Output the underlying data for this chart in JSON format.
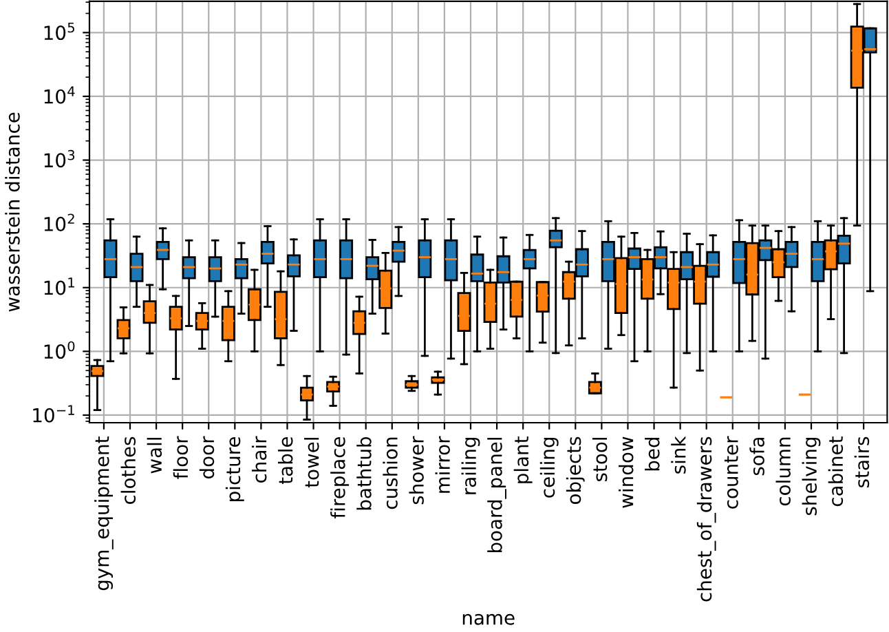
{
  "chart_data": {
    "type": "box",
    "xlabel": "name",
    "ylabel": "wasserstein distance",
    "categories": [
      "gym_equipment",
      "clothes",
      "wall",
      "floor",
      "door",
      "picture",
      "chair",
      "table",
      "towel",
      "fireplace",
      "bathtub",
      "cushion",
      "shower",
      "mirror",
      "railing",
      "board_panel",
      "plant",
      "ceiling",
      "objects",
      "stool",
      "window",
      "bed",
      "sink",
      "chest_of_drawers",
      "counter",
      "sofa",
      "column",
      "shelving",
      "cabinet",
      "stairs"
    ],
    "log": true,
    "grid": true,
    "ylim": [
      0.076,
      310000
    ],
    "yticks": [
      {
        "value": 0.1,
        "label": "10$^{−1}$"
      },
      {
        "value": 1,
        "label": "10$^{0}$"
      },
      {
        "value": 10,
        "label": "10$^{1}$"
      },
      {
        "value": 100,
        "label": "10$^{2}$"
      },
      {
        "value": 1000,
        "label": "10$^{3}$"
      },
      {
        "value": 10000,
        "label": "10$^{4}$"
      },
      {
        "value": 100000,
        "label": "10$^{5}$"
      }
    ],
    "series": [
      {
        "color": "#ff7f0e",
        "boxes": [
          {
            "low": 0.12,
            "q1": 0.41,
            "median": 0.49,
            "q3": 0.59,
            "high": 0.73
          },
          {
            "low": 0.93,
            "q1": 1.6,
            "median": 2.3,
            "q3": 3.1,
            "high": 4.9
          },
          {
            "low": 0.93,
            "q1": 2.8,
            "median": 4.0,
            "q3": 6.1,
            "high": 11
          },
          {
            "low": 0.37,
            "q1": 2.2,
            "median": 3.3,
            "q3": 5.0,
            "high": 7.4
          },
          {
            "low": 1.1,
            "q1": 2.2,
            "median": 3.0,
            "q3": 4.0,
            "high": 5.7
          },
          {
            "low": 0.7,
            "q1": 1.5,
            "median": 3.0,
            "q3": 5.0,
            "high": 8.8
          },
          {
            "low": 1.0,
            "q1": 3.1,
            "median": 5.4,
            "q3": 9.4,
            "high": 19
          },
          {
            "low": 0.61,
            "q1": 1.6,
            "median": 3.2,
            "q3": 8.6,
            "high": 18
          },
          {
            "low": 0.085,
            "q1": 0.17,
            "median": 0.21,
            "q3": 0.27,
            "high": 0.41
          },
          {
            "low": 0.14,
            "q1": 0.235,
            "median": 0.28,
            "q3": 0.33,
            "high": 0.4
          },
          {
            "low": 0.45,
            "q1": 1.87,
            "median": 2.8,
            "q3": 4.25,
            "high": 7.2
          },
          {
            "low": 1.9,
            "q1": 4.8,
            "median": 9.7,
            "q3": 18.4,
            "high": 35
          },
          {
            "low": 0.24,
            "q1": 0.27,
            "median": 0.3,
            "q3": 0.34,
            "high": 0.41
          },
          {
            "low": 0.21,
            "q1": 0.32,
            "median": 0.36,
            "q3": 0.39,
            "high": 0.48
          },
          {
            "low": 0.63,
            "q1": 2.1,
            "median": 3.6,
            "q3": 8.2,
            "high": 17
          },
          {
            "low": 1.1,
            "q1": 2.9,
            "median": 5.6,
            "q3": 12,
            "high": 19
          },
          {
            "low": 1.6,
            "q1": 3.5,
            "median": 6.4,
            "q3": 12.4,
            "high": 12.4
          },
          {
            "low": 1.37,
            "q1": 4.2,
            "median": 7.5,
            "q3": 12.2,
            "high": 12.2
          },
          {
            "low": 1.24,
            "q1": 6.7,
            "median": 12.4,
            "q3": 17.5,
            "high": 25.5
          },
          {
            "low": 0.22,
            "q1": 0.22,
            "median": 0.27,
            "q3": 0.33,
            "high": 0.45
          },
          {
            "low": 1.8,
            "q1": 4.0,
            "median": 11.4,
            "q3": 29,
            "high": 63
          },
          {
            "low": 1.0,
            "q1": 6.7,
            "median": 13.4,
            "q3": 28,
            "high": 39
          },
          {
            "low": 0.27,
            "q1": 4.6,
            "median": 12,
            "q3": 19.6,
            "high": 36
          },
          {
            "low": 0.5,
            "q1": 5.6,
            "median": 12.4,
            "q3": 22,
            "high": 48
          },
          {
            "low": 0.19,
            "q1": 0.19,
            "median": 0.19,
            "q3": 0.19,
            "high": 0.19
          },
          {
            "low": 1.46,
            "q1": 7.8,
            "median": 16,
            "q3": 50,
            "high": 94
          },
          {
            "low": 6.2,
            "q1": 14.6,
            "median": 25,
            "q3": 40,
            "high": 77
          },
          {
            "low": 0.21,
            "q1": 0.21,
            "median": 0.21,
            "q3": 0.21,
            "high": 0.21
          },
          {
            "low": 3.2,
            "q1": 19.4,
            "median": 37,
            "q3": 55,
            "high": 94
          },
          {
            "low": 94,
            "q1": 13700,
            "median": 52000,
            "q3": 124000,
            "high": 280000
          }
        ]
      },
      {
        "color": "#1f77b4",
        "boxes": [
          {
            "low": 0.7,
            "q1": 14.6,
            "median": 28,
            "q3": 55,
            "high": 118
          },
          {
            "low": 5.0,
            "q1": 12.6,
            "median": 21,
            "q3": 34,
            "high": 63
          },
          {
            "low": 9.4,
            "q1": 28,
            "median": 39,
            "q3": 52,
            "high": 85
          },
          {
            "low": 2.5,
            "q1": 14,
            "median": 21,
            "q3": 30,
            "high": 55
          },
          {
            "low": 3.5,
            "q1": 12.6,
            "median": 20,
            "q3": 30,
            "high": 55
          },
          {
            "low": 3.9,
            "q1": 14,
            "median": 23,
            "q3": 28,
            "high": 50
          },
          {
            "low": 5.0,
            "q1": 24,
            "median": 34,
            "q3": 52,
            "high": 92
          },
          {
            "low": 2.1,
            "q1": 15,
            "median": 23,
            "q3": 32,
            "high": 57
          },
          {
            "low": 1.0,
            "q1": 14.6,
            "median": 28,
            "q3": 55,
            "high": 118
          },
          {
            "low": 0.89,
            "q1": 14,
            "median": 28,
            "q3": 55,
            "high": 118
          },
          {
            "low": 3.9,
            "q1": 13.5,
            "median": 22,
            "q3": 30,
            "high": 56
          },
          {
            "low": 7.4,
            "q1": 25.5,
            "median": 38,
            "q3": 52,
            "high": 89
          },
          {
            "low": 0.85,
            "q1": 14.6,
            "median": 30,
            "q3": 55,
            "high": 118
          },
          {
            "low": 0.77,
            "q1": 13,
            "median": 28,
            "q3": 55,
            "high": 118
          },
          {
            "low": 1.0,
            "q1": 12.6,
            "median": 16.6,
            "q3": 33,
            "high": 63
          },
          {
            "low": 2.2,
            "q1": 12,
            "median": 17.5,
            "q3": 31,
            "high": 61
          },
          {
            "low": 1.0,
            "q1": 20,
            "median": 28,
            "q3": 39,
            "high": 67
          },
          {
            "low": 0.94,
            "q1": 43,
            "median": 55,
            "q3": 78,
            "high": 123
          },
          {
            "low": 1.6,
            "q1": 15,
            "median": 23,
            "q3": 40,
            "high": 77
          },
          {
            "low": 1.1,
            "q1": 12.6,
            "median": 28,
            "q3": 52,
            "high": 110
          },
          {
            "low": 0.7,
            "q1": 19.6,
            "median": 30,
            "q3": 41,
            "high": 72
          },
          {
            "low": 7.9,
            "q1": 20,
            "median": 30,
            "q3": 43,
            "high": 76
          },
          {
            "low": 0.94,
            "q1": 13.5,
            "median": 21,
            "q3": 36,
            "high": 70
          },
          {
            "low": 1.0,
            "q1": 14.8,
            "median": 23,
            "q3": 36,
            "high": 66
          },
          {
            "low": 1.0,
            "q1": 11.8,
            "median": 28,
            "q3": 52,
            "high": 114
          },
          {
            "low": 0.77,
            "q1": 27,
            "median": 42,
            "q3": 55,
            "high": 94
          },
          {
            "low": 4.25,
            "q1": 21,
            "median": 34,
            "q3": 52,
            "high": 89
          },
          {
            "low": 1.0,
            "q1": 12.6,
            "median": 28,
            "q3": 52,
            "high": 110
          },
          {
            "low": 0.94,
            "q1": 24,
            "median": 49,
            "q3": 65,
            "high": 123
          },
          {
            "low": 8.8,
            "q1": 49000,
            "median": 55000,
            "q3": 117000,
            "high": 117000
          }
        ]
      }
    ]
  }
}
